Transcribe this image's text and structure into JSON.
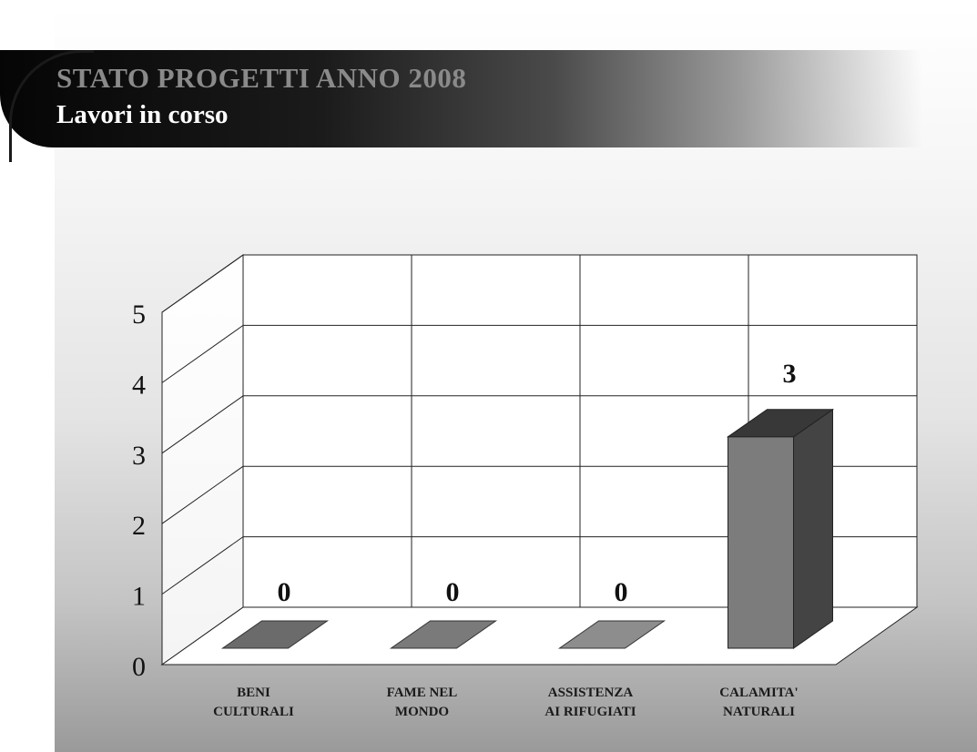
{
  "slide": {
    "title": "STATO PROGETTI ANNO 2008",
    "subtitle": "Lavori in corso"
  },
  "colors": {
    "background_top": "#ffffff",
    "background_bottom": "#9a9a9a",
    "banner": "#0d0d0d",
    "title_text": "#8a8a8a",
    "subtitle_text": "#ffffff"
  },
  "chart_data": {
    "type": "bar",
    "style": "3d",
    "title": "",
    "xlabel": "",
    "ylabel": "",
    "categories": [
      [
        "BENI",
        "CULTURALI"
      ],
      [
        "FAME NEL",
        "MONDO"
      ],
      [
        "ASSISTENZA",
        "AI RIFUGIATI"
      ],
      [
        "CALAMITA'",
        "NATURALI"
      ]
    ],
    "values": [
      0,
      0,
      0,
      3
    ],
    "data_labels": [
      "0",
      "0",
      "0",
      "3"
    ],
    "bar_colors": [
      "#6b6b6b",
      "#7a7a7a",
      "#8d8d8d",
      "#7c7c7c"
    ],
    "ylim": [
      0,
      5
    ],
    "yticks": [
      "0",
      "1",
      "2",
      "3",
      "4",
      "5"
    ],
    "grid": true,
    "legend": "none"
  }
}
